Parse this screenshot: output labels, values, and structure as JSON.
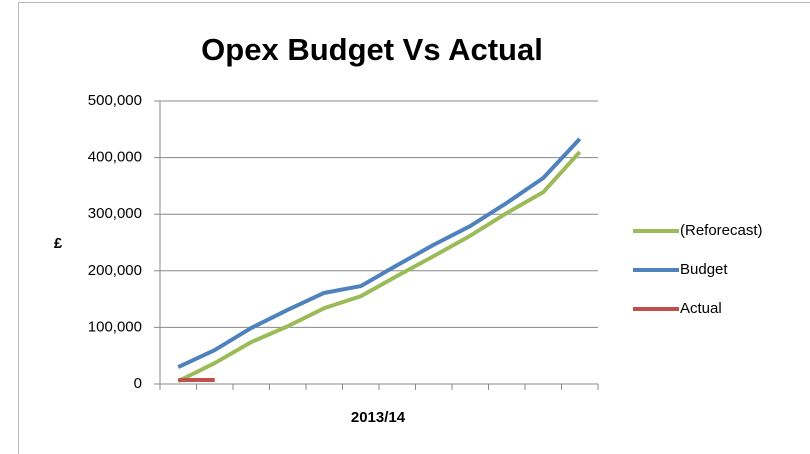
{
  "chart_data": {
    "type": "line",
    "title": "Opex Budget Vs Actual",
    "x_label": "2013/14",
    "y_label": "£",
    "categories": [
      null,
      null,
      null,
      null,
      null,
      null,
      null,
      null,
      null,
      null,
      null,
      null
    ],
    "series": [
      {
        "name": "(Reforecast)",
        "color": "#9bbb59",
        "values": [
          5000,
          37000,
          74000,
          102000,
          134000,
          155000,
          191000,
          226000,
          262000,
          302000,
          339000,
          410000
        ]
      },
      {
        "name": "Budget",
        "color": "#4f81bd",
        "values": [
          30000,
          60000,
          99000,
          131000,
          161000,
          173000,
          210000,
          246000,
          279000,
          320000,
          364000,
          433000
        ]
      },
      {
        "name": "Actual",
        "color": "#c0504d",
        "values": [
          7000,
          7000,
          null,
          null,
          null,
          null,
          null,
          null,
          null,
          null,
          null,
          null
        ]
      }
    ],
    "ylim": [
      0,
      500000
    ],
    "yticks": [
      0,
      {
        "value": 100000,
        "label": "100,000"
      },
      {
        "value": 200000,
        "label": "200,000"
      },
      {
        "value": 300000,
        "label": "300,000"
      },
      {
        "value": 400000,
        "label": "400,000"
      },
      {
        "value": 500000,
        "label": "500,000"
      }
    ],
    "grid": true,
    "legend": "right"
  }
}
